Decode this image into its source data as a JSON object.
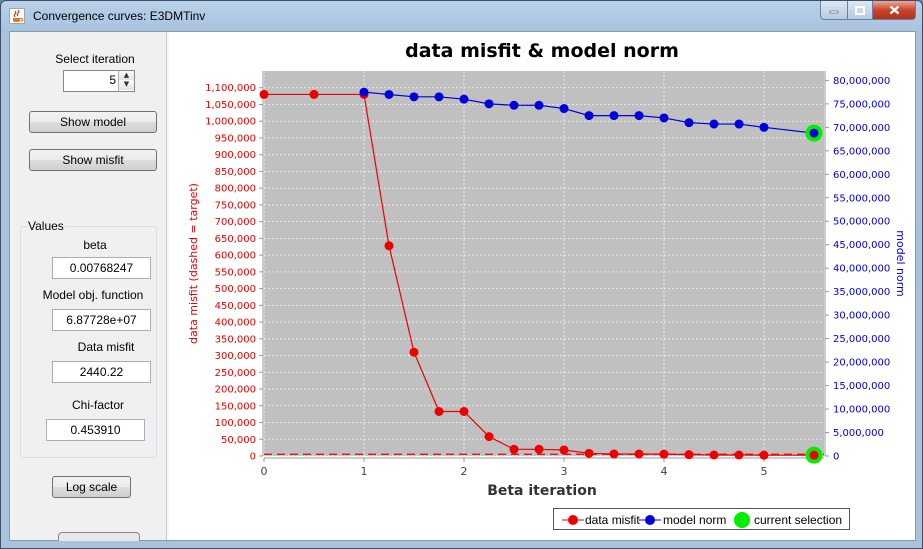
{
  "window": {
    "title": "Convergence curves: E3DMTinv",
    "icon": "java-cup-icon"
  },
  "left_panel": {
    "iteration_label": "Select iteration",
    "iteration_value": "5",
    "show_model_label": "Show model",
    "show_misfit_label": "Show misfit",
    "values_group_title": "Values",
    "beta_label": "beta",
    "beta_value": "0.00768247",
    "model_obj_label": "Model obj. function",
    "model_obj_value": "6.87728e+07",
    "data_misfit_label": "Data misfit",
    "data_misfit_value": "2440.22",
    "chi_factor_label": "Chi-factor",
    "chi_factor_value": "0.453910",
    "log_scale_label": "Log scale"
  },
  "legend": {
    "data_misfit": "data misfit",
    "model_norm": "model norm",
    "current_selection": "current selection"
  },
  "colors": {
    "misfit": "#ee0000",
    "norm": "#0000dd",
    "selection": "#00ee00",
    "plot_bg": "#c0c0c0"
  },
  "chart_data": {
    "type": "line",
    "title": "data misfit & model norm",
    "xlabel": "Beta iteration",
    "ylabel_left": "data misfit (dashed = target)",
    "ylabel_right": "model norm",
    "xlim": [
      0,
      5.6
    ],
    "ylim_left": [
      0,
      1150000
    ],
    "ylim_right": [
      0,
      82000000
    ],
    "x_ticks": [
      "0",
      "1",
      "2",
      "3",
      "4",
      "5"
    ],
    "y_ticks_left": [
      "0",
      "50,000",
      "100,000",
      "150,000",
      "200,000",
      "250,000",
      "300,000",
      "350,000",
      "400,000",
      "450,000",
      "500,000",
      "550,000",
      "600,000",
      "650,000",
      "700,000",
      "750,000",
      "800,000",
      "850,000",
      "900,000",
      "950,000",
      "1,000,000",
      "1,050,000",
      "1,100,000"
    ],
    "y_ticks_right": [
      "0",
      "5,000,000",
      "10,000,000",
      "15,000,000",
      "20,000,000",
      "25,000,000",
      "30,000,000",
      "35,000,000",
      "40,000,000",
      "45,000,000",
      "50,000,000",
      "55,000,000",
      "60,000,000",
      "65,000,000",
      "70,000,000",
      "75,000,000",
      "80,000,000"
    ],
    "target_misfit": 5300,
    "grid": true,
    "series": [
      {
        "name": "data misfit",
        "x": [
          0,
          0.5,
          1.0,
          1.25,
          1.5,
          1.75,
          2.0,
          2.25,
          2.5,
          2.75,
          3.0,
          3.25,
          3.5,
          3.75,
          4.0,
          4.25,
          4.5,
          4.75,
          5.0,
          5.5
        ],
        "y": [
          1080000,
          1080000,
          1080000,
          628000,
          310000,
          133000,
          133000,
          58000,
          20000,
          20000,
          18000,
          8000,
          6000,
          6000,
          5500,
          4000,
          3000,
          3000,
          2500,
          2440
        ]
      },
      {
        "name": "model norm",
        "x": [
          1.0,
          1.25,
          1.5,
          1.75,
          2.0,
          2.25,
          2.5,
          2.75,
          3.0,
          3.25,
          3.5,
          3.75,
          4.0,
          4.25,
          4.5,
          4.75,
          5.0,
          5.5
        ],
        "y": [
          77500000,
          77000000,
          76500000,
          76500000,
          76000000,
          75000000,
          74700000,
          74700000,
          74000000,
          72500000,
          72500000,
          72500000,
          72000000,
          71000000,
          70700000,
          70700000,
          70000000,
          68770000
        ]
      }
    ],
    "selection": {
      "iteration": 5,
      "x": 5.5,
      "misfit": 2440.22,
      "norm": 68772800
    }
  }
}
